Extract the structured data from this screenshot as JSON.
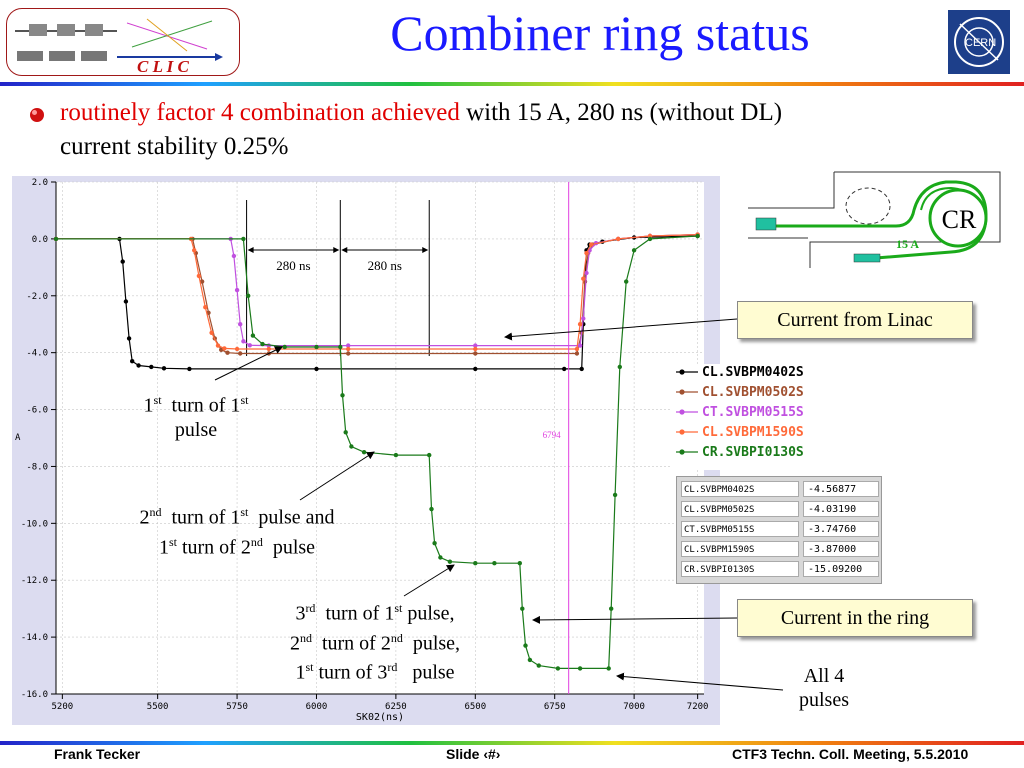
{
  "title": "Combiner ring status",
  "bullet": {
    "red_text": "routinely factor 4 combination achieved",
    "rest_text": " with 15 A,  280 ns (without DL)",
    "line2": "current stability 0.25%"
  },
  "logos": {
    "clic": "C L I C",
    "cern": "CERN"
  },
  "chart_data": {
    "type": "line",
    "xlabel": "SK02(ns)",
    "ylabel": "A",
    "xlim": [
      5180,
      7220
    ],
    "ylim": [
      -16,
      2
    ],
    "x_ticks": [
      5200,
      5500,
      5750,
      6000,
      6250,
      6500,
      6750,
      7000,
      7200
    ],
    "y_ticks": [
      "2.0",
      "0.0",
      "-2.0",
      "-4.0",
      "-6.0",
      "-8.0",
      "-10.0",
      "-12.0",
      "-14.0",
      "-16.0"
    ],
    "y_tick_values": [
      2,
      0,
      -2,
      -4,
      -6,
      -8,
      -10,
      -12,
      -14,
      -16
    ],
    "grid": true,
    "cursor": {
      "x": 6794,
      "label": "6794",
      "color": "#e040e0"
    },
    "markers_x": [
      5780,
      6075,
      6355
    ],
    "interval_labels": [
      "280 ns",
      "280 ns"
    ],
    "series": [
      {
        "name": "CL.SVBPM0402S",
        "color": "#000000",
        "x": [
          5180,
          5380,
          5390,
          5400,
          5410,
          5420,
          5440,
          5480,
          5520,
          5600,
          6000,
          6500,
          6780,
          6835,
          6840,
          6845,
          6850,
          6860,
          6900,
          7000,
          7200
        ],
        "y": [
          0,
          0,
          -0.8,
          -2.2,
          -3.5,
          -4.3,
          -4.45,
          -4.5,
          -4.55,
          -4.57,
          -4.57,
          -4.57,
          -4.57,
          -4.57,
          -3.0,
          -1.5,
          -0.4,
          -0.2,
          -0.1,
          0.05,
          0.1
        ]
      },
      {
        "name": "CL.SVBPM0502S",
        "color": "#a05030",
        "x": [
          5180,
          5610,
          5620,
          5640,
          5660,
          5680,
          5700,
          5720,
          5760,
          5850,
          6100,
          6500,
          6820,
          6835,
          6845,
          6855,
          6870,
          6950,
          7050,
          7200
        ],
        "y": [
          0,
          0,
          -0.5,
          -1.5,
          -2.6,
          -3.5,
          -3.9,
          -4.0,
          -4.03,
          -4.03,
          -4.03,
          -4.03,
          -4.03,
          -3.3,
          -1.5,
          -0.5,
          -0.2,
          0.0,
          0.1,
          0.15
        ]
      },
      {
        "name": "CT.SVBPM0515S",
        "color": "#c050e0",
        "x": [
          5180,
          5730,
          5740,
          5750,
          5760,
          5770,
          5790,
          5850,
          6100,
          6500,
          6830,
          6840,
          6850,
          6860,
          6880,
          6950,
          7050,
          7200
        ],
        "y": [
          0,
          0,
          -0.6,
          -1.8,
          -3.0,
          -3.6,
          -3.74,
          -3.75,
          -3.75,
          -3.75,
          -3.75,
          -2.8,
          -1.2,
          -0.4,
          -0.15,
          0.0,
          0.1,
          0.15
        ]
      },
      {
        "name": "CL.SVBPM1590S",
        "color": "#ff6a3a",
        "x": [
          5180,
          5605,
          5615,
          5630,
          5650,
          5670,
          5690,
          5710,
          5750,
          5850,
          6100,
          6500,
          6820,
          6830,
          6840,
          6850,
          6865,
          6950,
          7050,
          7200
        ],
        "y": [
          0,
          0,
          -0.4,
          -1.3,
          -2.4,
          -3.3,
          -3.75,
          -3.85,
          -3.87,
          -3.87,
          -3.87,
          -3.87,
          -3.87,
          -3.0,
          -1.4,
          -0.5,
          -0.2,
          0.0,
          0.1,
          0.15
        ]
      },
      {
        "name": "CR.SVBPI0130S",
        "color": "#1a7a1a",
        "x": [
          5180,
          5770,
          5785,
          5800,
          5830,
          5900,
          6000,
          6075,
          6082,
          6092,
          6110,
          6150,
          6250,
          6355,
          6362,
          6372,
          6390,
          6420,
          6500,
          6560,
          6640,
          6648,
          6658,
          6672,
          6700,
          6760,
          6830,
          6920,
          6928,
          6940,
          6955,
          6975,
          7000,
          7050,
          7200
        ],
        "y": [
          0,
          0,
          -2.0,
          -3.4,
          -3.7,
          -3.8,
          -3.8,
          -3.8,
          -5.5,
          -6.8,
          -7.3,
          -7.5,
          -7.6,
          -7.6,
          -9.5,
          -10.7,
          -11.2,
          -11.35,
          -11.4,
          -11.4,
          -11.4,
          -13.0,
          -14.3,
          -14.8,
          -15.0,
          -15.1,
          -15.1,
          -15.1,
          -13.0,
          -9.0,
          -4.5,
          -1.5,
          -0.4,
          0.0,
          0.1
        ]
      }
    ]
  },
  "legend": {
    "entries": [
      "CL.SVBPM0402S",
      "CL.SVBPM0502S",
      "CT.SVBPM0515S",
      "CL.SVBPM1590S",
      "CR.SVBPI0130S"
    ],
    "colors": [
      "#000000",
      "#a05030",
      "#c050e0",
      "#ff6a3a",
      "#1a7a1a"
    ]
  },
  "value_table": [
    {
      "name": "CL.SVBPM0402S",
      "value": "-4.56877"
    },
    {
      "name": "CL.SVBPM0502S",
      "value": "-4.03190"
    },
    {
      "name": "CT.SVBPM0515S",
      "value": "-3.74760"
    },
    {
      "name": "CL.SVBPM1590S",
      "value": "-3.87000"
    },
    {
      "name": "CR.SVBPI0130S",
      "value": "-15.09200"
    }
  ],
  "ring": {
    "label": "CR",
    "current": "15 A"
  },
  "callouts": {
    "linac": "Current from Linac",
    "ring": "Current in the ring"
  },
  "annotations": {
    "a1_l1": "turn of 1",
    "a1_l2": "pulse",
    "a2_l1a": "turn of 1",
    "a2_l1b": "pulse and",
    "a2_l2a": "turn of 2",
    "a2_l2b": "pulse",
    "a3_l1a": "turn of 1",
    "a3_l1b": "pulse,",
    "a3_l2a": "turn of 2",
    "a3_l2b": "pulse,",
    "a3_l3a": "turn of 3",
    "a3_l3b": "pulse",
    "all4_l1": "All 4",
    "all4_l2": "pulses",
    "ord_1": "1",
    "ord_2": "2",
    "ord_3": "3",
    "sup_st": "st",
    "sup_nd": "nd",
    "sup_rd": "rd"
  },
  "footer": {
    "author": "Frank Tecker",
    "slide": "Slide ‹#›",
    "meeting": "CTF3 Techn. Coll. Meeting, 5.5.2010"
  }
}
